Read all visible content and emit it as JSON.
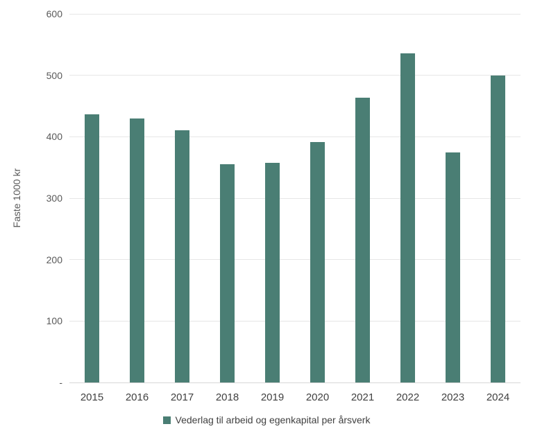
{
  "chart_data": {
    "type": "bar",
    "categories": [
      "2015",
      "2016",
      "2017",
      "2018",
      "2019",
      "2020",
      "2021",
      "2022",
      "2023",
      "2024"
    ],
    "values": [
      437,
      430,
      411,
      355,
      357,
      391,
      463,
      536,
      375,
      500
    ],
    "xlabel": "",
    "ylabel": "Faste 1000 kr",
    "ylim": [
      0,
      600
    ],
    "yticks": [
      0,
      100,
      200,
      300,
      400,
      500,
      600
    ],
    "ytick_labels": [
      "-",
      "100",
      "200",
      "300",
      "400",
      "500",
      "600"
    ],
    "grid": true,
    "legend_position": "bottom",
    "legend": "Vederlag til arbeid og egenkapital per årsverk"
  },
  "colors": {
    "bar": "#4a7e74",
    "gridline": "#e6e6e6",
    "axis_line": "#d6d6d6",
    "tick_text": "#595959",
    "category_text": "#404040",
    "legend_text": "#404040",
    "background": "#ffffff"
  }
}
